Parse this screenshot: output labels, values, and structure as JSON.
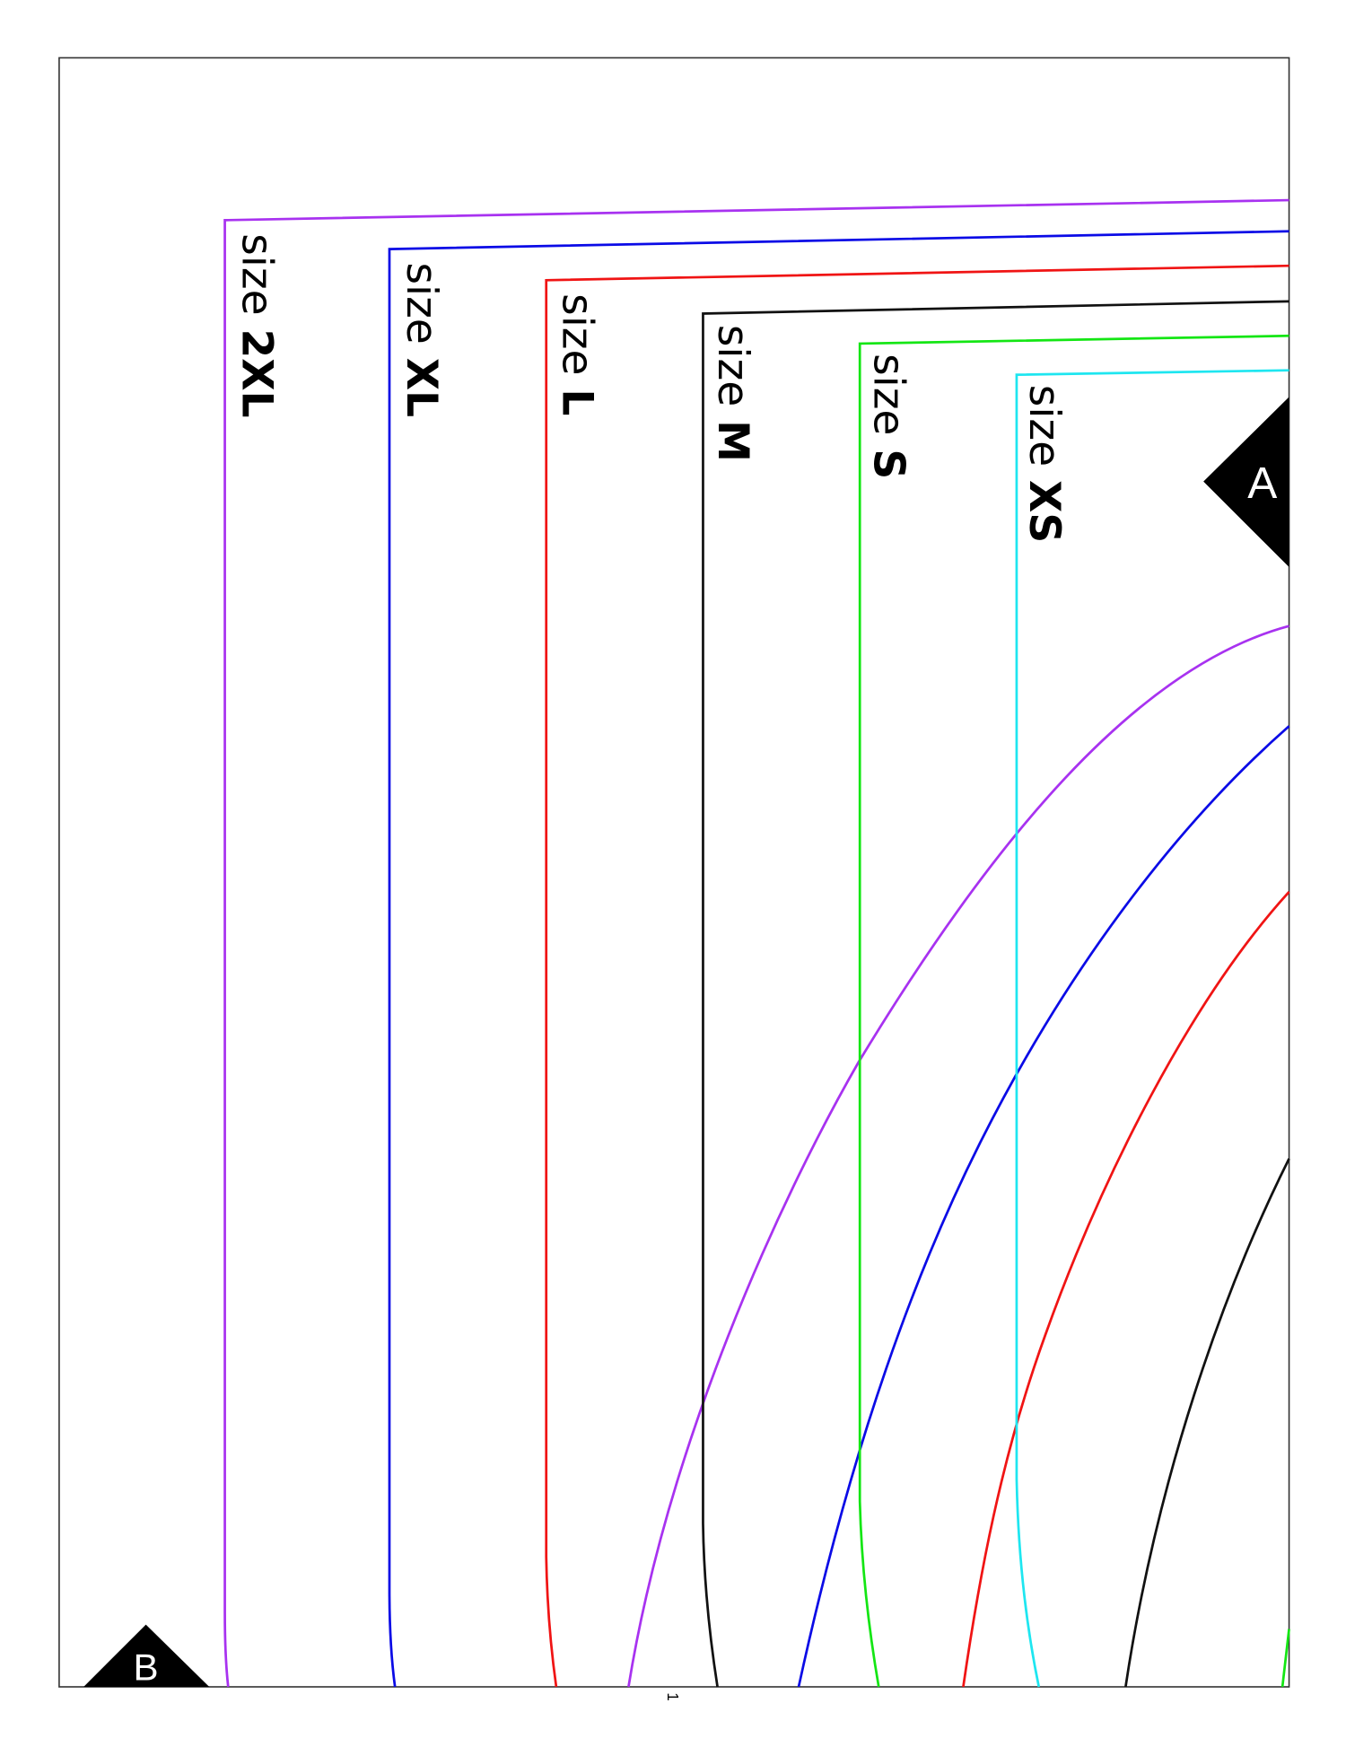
{
  "sizes": [
    {
      "prefix": "size ",
      "size": "2XL",
      "color": "#a832f0"
    },
    {
      "prefix": "size ",
      "size": "XL",
      "color": "#0b0be6"
    },
    {
      "prefix": "size ",
      "size": "L",
      "color": "#f01414"
    },
    {
      "prefix": "size ",
      "size": "M",
      "color": "#111111"
    },
    {
      "prefix": "size ",
      "size": "S",
      "color": "#14e614"
    },
    {
      "prefix": "size ",
      "size": "XS",
      "color": "#1ee6f0"
    }
  ],
  "markers": {
    "a": "A",
    "b": "B"
  },
  "page_number": "1"
}
